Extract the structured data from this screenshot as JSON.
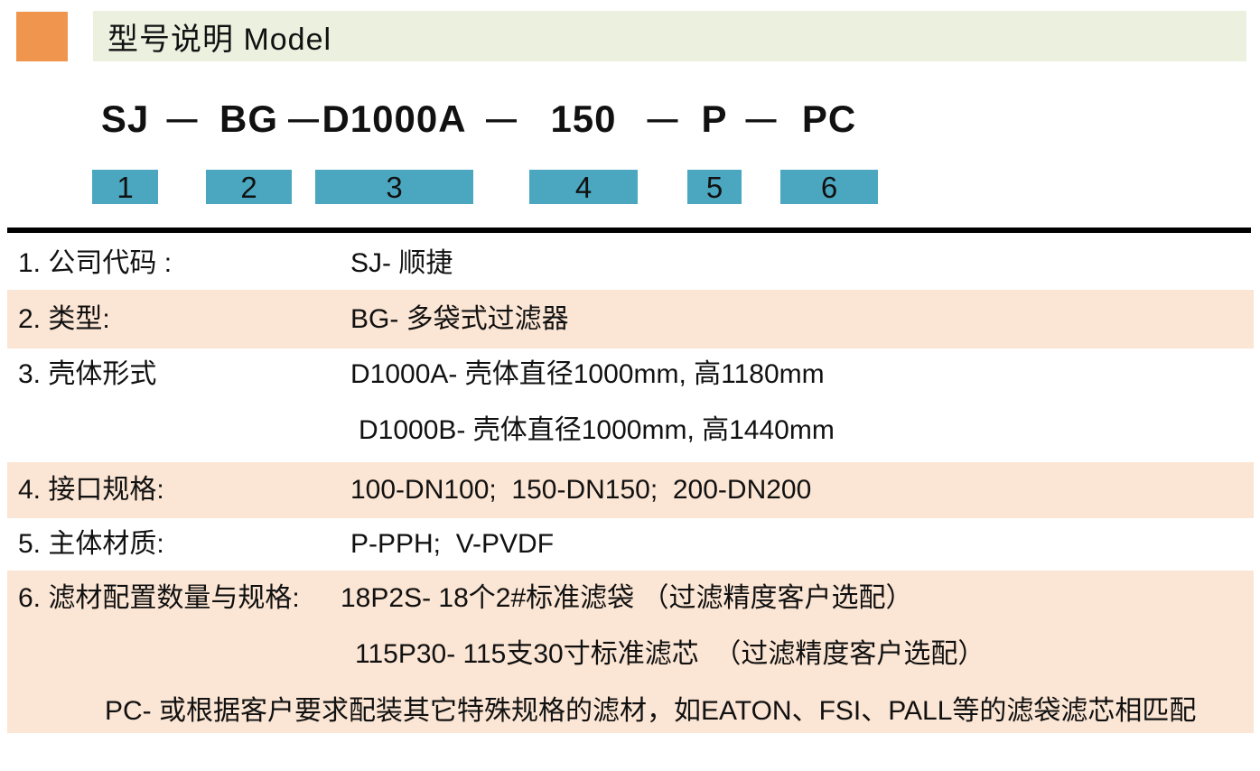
{
  "colors": {
    "accent-orange": "#F0954E",
    "title-bar-bg": "#ECF0DF",
    "box-teal": "#4BA7C0",
    "row-peach": "#FBE5D4",
    "text": "#111111",
    "rule-black": "#000000"
  },
  "header": {
    "title": "型号说明 Model"
  },
  "model_code": {
    "separator": "—",
    "segments": [
      {
        "code": "SJ",
        "num": "1"
      },
      {
        "code": "BG",
        "num": "2"
      },
      {
        "code": "D1000A",
        "num": "3"
      },
      {
        "code": "150",
        "num": "4"
      },
      {
        "code": "P",
        "num": "5"
      },
      {
        "code": "PC",
        "num": "6"
      }
    ]
  },
  "rows": [
    {
      "label": "1. 公司代码 :",
      "lines": [
        "SJ- 顺捷"
      ]
    },
    {
      "label": "2. 类型:",
      "lines": [
        "BG- 多袋式过滤器"
      ]
    },
    {
      "label": "3. 壳体形式",
      "lines": [
        "D1000A- 壳体直径1000mm, 高1180mm",
        "D1000B- 壳体直径1000mm, 高1440mm"
      ]
    },
    {
      "label": "4. 接口规格:",
      "lines": [
        "100-DN100;  150-DN150;  200-DN200"
      ]
    },
    {
      "label": "5. 主体材质:",
      "lines": [
        "P-PPH;  V-PVDF"
      ]
    },
    {
      "label": "6. 滤材配置数量与规格:",
      "lines": [
        "18P2S- 18个2#标准滤袋 （过滤精度客户选配）",
        "115P30- 115支30寸标准滤芯  （过滤精度客户选配）",
        "PC- 或根据客户要求配装其它特殊规格的滤材，如EATON、FSI、PALL等的滤袋滤芯相匹配"
      ]
    }
  ]
}
